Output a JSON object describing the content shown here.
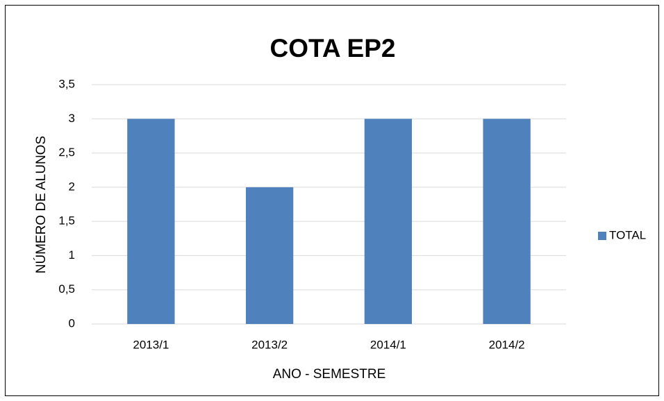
{
  "chart_data": {
    "type": "bar",
    "title": "COTA EP2",
    "x_label": "ANO - SEMESTRE",
    "y_label": "NÚMERO DE ALUNOS",
    "categories": [
      "2013/1",
      "2013/2",
      "2014/1",
      "2014/2"
    ],
    "series": [
      {
        "name": "TOTAL",
        "color": "#4f81bd",
        "values": [
          3,
          2,
          3,
          3
        ]
      }
    ],
    "ylim": [
      0,
      3.5
    ],
    "yticks": [
      0,
      {
        "value": 0.5,
        "label": "0,5"
      },
      1,
      {
        "value": 1.5,
        "label": "1,5"
      },
      2,
      {
        "value": 2.5,
        "label": "2,5"
      },
      3,
      {
        "value": 3.5,
        "label": "3,5"
      }
    ],
    "grid": true,
    "legend": "right"
  }
}
